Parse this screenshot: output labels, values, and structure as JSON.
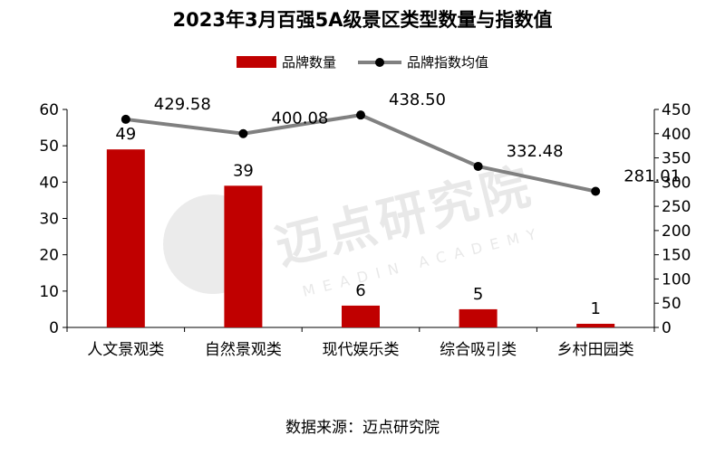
{
  "title": "2023年3月百强5A级景区类型数量与指数值",
  "legend": {
    "bar_label": "品牌数量",
    "line_label": "品牌指数均值"
  },
  "source": "数据来源：迈点研究院",
  "watermark": {
    "cn": "迈点研究院",
    "en": "MEADIN ACADEMY"
  },
  "colors": {
    "bar": "#c00000",
    "line": "#808080",
    "marker": "#000000"
  },
  "chart_data": {
    "type": "bar",
    "title": "2023年3月百强5A级景区类型数量与指数值",
    "categories": [
      "人文景观类",
      "自然景观类",
      "现代娱乐类",
      "综合吸引类",
      "乡村田园类"
    ],
    "series": [
      {
        "name": "品牌数量",
        "type": "bar",
        "axis": "left",
        "values": [
          49,
          39,
          6,
          5,
          1
        ],
        "labels": [
          "49",
          "39",
          "6",
          "5",
          "1"
        ]
      },
      {
        "name": "品牌指数均值",
        "type": "line",
        "axis": "right",
        "values": [
          429.58,
          400.08,
          438.5,
          332.48,
          281.01
        ],
        "labels": [
          "429.58",
          "400.08",
          "438.50",
          "332.48",
          "281.01"
        ]
      }
    ],
    "y_left": {
      "min": 0,
      "max": 60,
      "ticks": [
        0,
        10,
        20,
        30,
        40,
        50,
        60
      ]
    },
    "y_right": {
      "min": 0,
      "max": 450,
      "ticks": [
        0,
        50,
        100,
        150,
        200,
        250,
        300,
        350,
        400,
        450
      ]
    },
    "grid": false,
    "legend_position": "top"
  }
}
